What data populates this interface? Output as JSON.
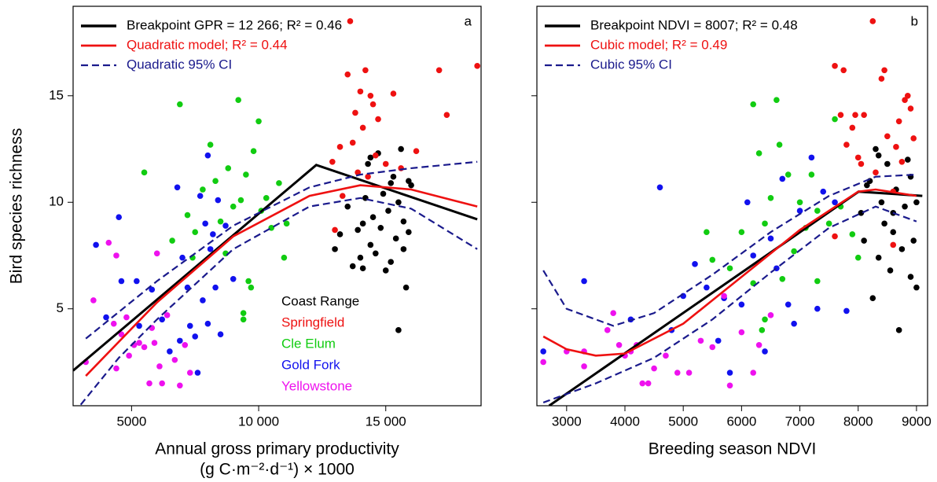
{
  "chart_data": [
    {
      "type": "scatter",
      "annotation": "a",
      "x_label": [
        "Annual gross primary productivity",
        "(g C·m⁻²·d⁻¹) × 1000"
      ],
      "y_label": "Bird species richness",
      "xlim": [
        2700,
        18750
      ],
      "ylim": [
        0.45,
        19.2
      ],
      "xticks": [
        5000,
        {
          "value": 10000,
          "label": "10 000"
        },
        {
          "value": 15000,
          "label": "15 000"
        }
      ],
      "yticks": [
        5,
        10,
        15
      ],
      "ytick_labels": true,
      "point_legend": true,
      "lines": [
        {
          "name": "Breakpoint GPR = 12 266; R² = 0.46",
          "color": "#000000",
          "dash": "solid",
          "x": [
            2700,
            12266,
            18600
          ],
          "y": [
            2.1,
            11.75,
            9.2
          ]
        },
        {
          "name": "Quadratic model; R² = 0.44",
          "color": "#ee1111",
          "dash": "solid",
          "x": [
            3200,
            6000,
            9000,
            12000,
            14000,
            16000,
            18600
          ],
          "y": [
            1.85,
            5.3,
            8.4,
            10.3,
            10.8,
            10.6,
            9.8
          ]
        },
        {
          "name": "Quadratic 95% CI",
          "color": "#1a1a8c",
          "dash": "dashed",
          "x": [
            3200,
            6000,
            9000,
            12000,
            14000,
            16000,
            18600
          ],
          "y": [
            3.6,
            6.3,
            8.9,
            10.7,
            11.3,
            11.6,
            11.9
          ]
        },
        {
          "color": "#1a1a8c",
          "dash": "dashed",
          "x": [
            3000,
            4500,
            6000,
            9000,
            12000,
            14000,
            16000,
            18600
          ],
          "y": [
            0.5,
            2.7,
            4.5,
            7.8,
            9.8,
            10.2,
            9.7,
            7.8
          ]
        }
      ],
      "series": [
        {
          "name": "Coast Range",
          "color": "#000000",
          "x": [
            13000,
            13200,
            13500,
            13700,
            13900,
            14000,
            14100,
            14200,
            14300,
            14400,
            14500,
            14600,
            14700,
            14800,
            14900,
            15000,
            15100,
            15200,
            15300,
            15400,
            15500,
            15500,
            15600,
            15700,
            15800,
            15900,
            16000,
            15700,
            14400,
            15200,
            14100,
            15900
          ],
          "y": [
            7.8,
            8.5,
            9.8,
            7.0,
            8.7,
            7.4,
            9.0,
            10.2,
            11.8,
            8.0,
            9.3,
            7.6,
            12.3,
            8.8,
            10.4,
            6.8,
            9.6,
            7.2,
            11.2,
            8.3,
            4.0,
            10.0,
            12.5,
            9.1,
            6.0,
            11.0,
            10.8,
            7.8,
            12.1,
            10.9,
            6.9,
            8.6
          ]
        },
        {
          "name": "Springfield",
          "color": "#ee1111",
          "x": [
            12900,
            13000,
            13300,
            13500,
            13600,
            13700,
            13800,
            14000,
            14100,
            14200,
            14300,
            14500,
            14600,
            14700,
            15000,
            15300,
            15600,
            16200,
            17100,
            17400,
            18600,
            13200,
            14400,
            13900
          ],
          "y": [
            11.9,
            8.7,
            10.3,
            16.0,
            18.5,
            12.8,
            14.2,
            15.2,
            13.5,
            16.2,
            11.2,
            14.6,
            12.2,
            13.9,
            11.8,
            15.1,
            11.6,
            12.4,
            16.2,
            14.1,
            16.4,
            12.6,
            15.0,
            11.4
          ]
        },
        {
          "name": "Cle Elum",
          "color": "#11cc11",
          "x": [
            5500,
            6600,
            6900,
            7200,
            7500,
            7800,
            8100,
            8300,
            8500,
            8700,
            9000,
            9200,
            9300,
            9400,
            9500,
            9600,
            9800,
            10000,
            10100,
            10300,
            10500,
            10800,
            11000,
            11100,
            8800,
            9700,
            7400,
            9400
          ],
          "y": [
            11.4,
            8.2,
            14.6,
            9.4,
            8.6,
            10.6,
            12.7,
            11.0,
            9.1,
            7.6,
            9.8,
            14.8,
            10.1,
            4.5,
            11.3,
            6.3,
            12.4,
            13.8,
            9.6,
            10.2,
            8.8,
            10.9,
            7.4,
            9.0,
            11.6,
            6.0,
            7.4,
            4.8
          ]
        },
        {
          "name": "Gold Fork",
          "color": "#1111ee",
          "x": [
            3600,
            4000,
            4500,
            4600,
            5200,
            5300,
            5800,
            6200,
            6500,
            6800,
            7000,
            7300,
            7500,
            7700,
            7900,
            8000,
            8200,
            8300,
            8500,
            8000,
            7600,
            8700,
            9000,
            8100,
            7800,
            6900,
            8400,
            7200
          ],
          "y": [
            8.0,
            4.6,
            9.3,
            6.3,
            6.3,
            4.2,
            5.9,
            4.5,
            3.0,
            10.7,
            7.4,
            4.2,
            3.7,
            10.3,
            9.0,
            12.2,
            8.5,
            6.0,
            3.8,
            4.3,
            2.0,
            8.9,
            6.4,
            7.8,
            5.4,
            3.5,
            10.1,
            6.0
          ]
        },
        {
          "name": "Yellowstone",
          "color": "#ee11ee",
          "x": [
            3200,
            3500,
            4100,
            4300,
            4400,
            4600,
            4800,
            4900,
            5100,
            5300,
            5500,
            5700,
            5900,
            6000,
            6100,
            6200,
            6400,
            6700,
            6900,
            7100,
            7300,
            4400,
            5800
          ],
          "y": [
            2.5,
            5.4,
            8.1,
            4.3,
            2.2,
            3.8,
            4.6,
            2.8,
            3.3,
            3.4,
            3.2,
            1.5,
            3.4,
            7.6,
            2.3,
            1.5,
            4.7,
            2.6,
            1.4,
            3.3,
            2.0,
            7.5,
            4.1
          ]
        }
      ]
    },
    {
      "type": "scatter",
      "annotation": "b",
      "x_label": [
        "Breeding season NDVI"
      ],
      "xlim": [
        2490,
        9190
      ],
      "ylim": [
        0.45,
        19.2
      ],
      "xticks": [
        3000,
        4000,
        5000,
        6000,
        7000,
        8000,
        9000
      ],
      "yticks": [
        5,
        10,
        15
      ],
      "ytick_labels": false,
      "point_legend": false,
      "lines": [
        {
          "name": "Breakpoint NDVI = 8007; R² = 0.48",
          "color": "#000000",
          "dash": "solid",
          "x": [
            2700,
            8007,
            9100
          ],
          "y": [
            0.45,
            10.5,
            10.3
          ]
        },
        {
          "name": "Cubic model; R² = 0.49",
          "color": "#ee1111",
          "dash": "solid",
          "x": [
            2600,
            3000,
            3500,
            4000,
            5000,
            6000,
            7000,
            8000,
            8300,
            9000
          ],
          "y": [
            3.7,
            3.1,
            2.8,
            2.9,
            4.3,
            6.5,
            8.7,
            10.5,
            10.6,
            10.3
          ]
        },
        {
          "name": "Cubic 95% CI",
          "color": "#1a1a8c",
          "dash": "dashed",
          "x": [
            2600,
            3000,
            3800,
            4500,
            5500,
            6500,
            7500,
            8300,
            9000
          ],
          "y": [
            6.8,
            5.0,
            4.2,
            4.8,
            6.6,
            8.6,
            10.3,
            11.2,
            11.3
          ]
        },
        {
          "color": "#1a1a8c",
          "dash": "dashed",
          "x": [
            2600,
            3500,
            4500,
            5500,
            6500,
            7500,
            8300,
            9000
          ],
          "y": [
            0.6,
            1.5,
            2.7,
            4.5,
            6.7,
            8.8,
            9.8,
            9.1
          ]
        }
      ],
      "series": [
        {
          "color": "#000000",
          "x": [
            8050,
            8100,
            8200,
            8250,
            8300,
            8350,
            8400,
            8450,
            8500,
            8550,
            8600,
            8650,
            8700,
            8750,
            8800,
            8850,
            8900,
            8950,
            9000,
            9000,
            8350,
            8600,
            8150,
            8900
          ],
          "y": [
            9.5,
            8.2,
            11.0,
            5.5,
            12.5,
            7.4,
            10.0,
            9.0,
            11.8,
            6.8,
            8.6,
            10.6,
            4.0,
            7.8,
            9.8,
            12.0,
            6.5,
            8.2,
            6.0,
            10.0,
            12.2,
            9.5,
            10.8,
            11.2
          ]
        },
        {
          "color": "#ee1111",
          "x": [
            7600,
            7700,
            7750,
            7800,
            7900,
            7950,
            8050,
            8100,
            8250,
            8300,
            8400,
            8450,
            8500,
            8600,
            8650,
            8700,
            8750,
            8800,
            8850,
            8900,
            8950,
            8600,
            7600,
            8000
          ],
          "y": [
            16.4,
            14.1,
            16.2,
            12.7,
            13.5,
            14.1,
            11.8,
            14.1,
            18.5,
            11.4,
            15.8,
            16.2,
            13.1,
            10.5,
            12.6,
            13.8,
            11.9,
            14.8,
            15.0,
            14.4,
            13.0,
            8.0,
            8.4,
            12.1
          ]
        },
        {
          "color": "#11cc11",
          "x": [
            5400,
            5500,
            6000,
            6200,
            6300,
            6400,
            6500,
            6600,
            6650,
            6700,
            6800,
            7000,
            7100,
            7200,
            7300,
            7500,
            7600,
            7700,
            7900,
            8000,
            6400,
            5800,
            6900,
            7300,
            6200,
            6350
          ],
          "y": [
            8.6,
            7.3,
            8.6,
            14.6,
            12.3,
            9.0,
            10.2,
            14.8,
            12.7,
            6.4,
            11.3,
            10.0,
            8.8,
            11.3,
            6.3,
            9.0,
            13.9,
            9.8,
            8.5,
            7.4,
            4.5,
            6.9,
            7.7,
            9.6,
            6.2,
            4.0
          ]
        },
        {
          "color": "#1111ee",
          "x": [
            3300,
            4100,
            4600,
            4800,
            5000,
            5200,
            5400,
            5600,
            5800,
            6000,
            6200,
            6400,
            6500,
            6600,
            6700,
            6800,
            6900,
            7000,
            7200,
            7300,
            7600,
            7800,
            5700,
            6100,
            7400,
            2600
          ],
          "y": [
            6.3,
            4.5,
            10.7,
            4.0,
            5.6,
            7.1,
            6.0,
            3.5,
            2.0,
            5.2,
            7.5,
            3.0,
            8.3,
            6.9,
            11.1,
            5.2,
            4.3,
            9.6,
            12.1,
            5.0,
            10.0,
            4.9,
            5.5,
            10.0,
            10.5,
            3.0
          ]
        },
        {
          "color": "#ee11ee",
          "x": [
            2600,
            3000,
            3300,
            3300,
            3800,
            3900,
            4000,
            4200,
            4300,
            4400,
            4500,
            4700,
            4900,
            5100,
            5300,
            5500,
            5700,
            5800,
            6000,
            6200,
            6300,
            6500,
            3700,
            4100
          ],
          "y": [
            2.5,
            3.0,
            2.3,
            3.0,
            4.8,
            3.3,
            2.8,
            3.3,
            1.5,
            1.5,
            2.2,
            2.8,
            2.0,
            2.0,
            3.5,
            3.2,
            5.6,
            1.4,
            3.9,
            2.0,
            3.3,
            4.7,
            4.0,
            3.0
          ]
        }
      ]
    }
  ]
}
